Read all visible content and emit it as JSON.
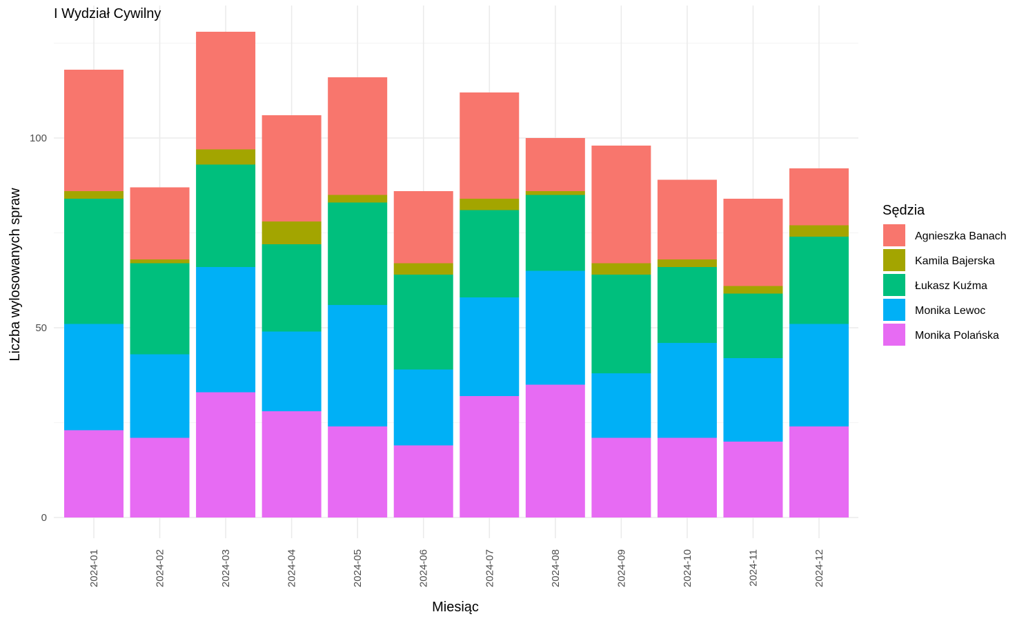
{
  "chart_data": {
    "type": "bar",
    "stacked": true,
    "title": "I Wydział Cywilny",
    "xlabel": "Miesiąc",
    "ylabel": "Liczba wylosowanych spraw",
    "ylim": [
      0,
      130
    ],
    "yticks": [
      0,
      50,
      100
    ],
    "grid": true,
    "legend_title": "Sędzia",
    "legend_position": "right",
    "categories": [
      "2024-01",
      "2024-02",
      "2024-03",
      "2024-04",
      "2024-05",
      "2024-06",
      "2024-07",
      "2024-08",
      "2024-09",
      "2024-10",
      "2024-11",
      "2024-12"
    ],
    "series": [
      {
        "name": "Agnieszka Banach",
        "color": "#F8766D",
        "values": [
          32,
          19,
          31,
          28,
          31,
          19,
          28,
          14,
          31,
          21,
          23,
          15
        ]
      },
      {
        "name": "Kamila Bajerska",
        "color": "#A3A500",
        "values": [
          2,
          1,
          4,
          6,
          2,
          3,
          3,
          1,
          3,
          2,
          2,
          3
        ]
      },
      {
        "name": "Łukasz Kuźma",
        "color": "#00BF7D",
        "values": [
          33,
          24,
          27,
          23,
          27,
          25,
          23,
          20,
          26,
          20,
          17,
          23
        ]
      },
      {
        "name": "Monika Lewoc",
        "color": "#00B0F6",
        "values": [
          28,
          22,
          33,
          21,
          32,
          20,
          26,
          30,
          17,
          25,
          22,
          27
        ]
      },
      {
        "name": "Monika Polańska",
        "color": "#E76BF3",
        "values": [
          23,
          21,
          33,
          28,
          24,
          19,
          32,
          35,
          21,
          21,
          20,
          24
        ]
      }
    ]
  }
}
